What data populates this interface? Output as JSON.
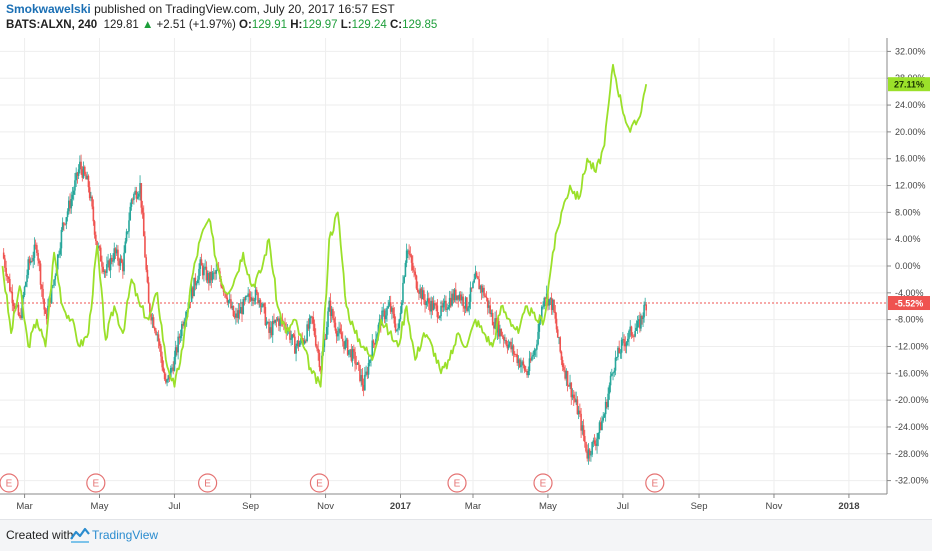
{
  "header": {
    "author": "Smokwawelski",
    "published_text": "published on TradingView.com, July 20, 2017 16:57 EST",
    "symbol": "BATS:ALXN, 240",
    "price": "129.81",
    "change_arrow": "▲",
    "change": "+2.51 (+1.97%)",
    "open_label": "O:",
    "open": "129.91",
    "high_label": "H:",
    "high": "129.97",
    "low_label": "L:",
    "low": "129.24",
    "close_label": "C:",
    "close": "129.85"
  },
  "footer": {
    "created_with": "Created with",
    "brand": "TradingView"
  },
  "colors": {
    "up_candle": "#26a69a",
    "down_candle": "#ef5350",
    "compare_line": "#9be02a",
    "price_line": "#ef5350",
    "earnings_marker": "#e57373",
    "grid": "#eeeeee"
  },
  "chart_data": {
    "type": "line",
    "y_unit": "%",
    "ylim": [
      -34,
      34
    ],
    "y_ticks": [
      32,
      28,
      24,
      20,
      16,
      12,
      8,
      4,
      0,
      -4,
      -8,
      -12,
      -16,
      -20,
      -24,
      -28,
      -32
    ],
    "y_tick_labels": [
      "32.00%",
      "28.00%",
      "24.00%",
      "20.00%",
      "16.00%",
      "12.00%",
      "8.00%",
      "4.00%",
      "0.00%",
      "-4.00%",
      "-8.00%",
      "-12.00%",
      "-16.00%",
      "-20.00%",
      "-24.00%",
      "-28.00%",
      "-32.00%"
    ],
    "x_range": [
      "2016-02-10",
      "2018-02-01"
    ],
    "x_ticks": [
      {
        "date": "2016-03-01",
        "label": "Mar"
      },
      {
        "date": "2016-05-01",
        "label": "May"
      },
      {
        "date": "2016-07-01",
        "label": "Jul"
      },
      {
        "date": "2016-09-01",
        "label": "Sep"
      },
      {
        "date": "2016-11-01",
        "label": "Nov"
      },
      {
        "date": "2017-01-01",
        "label": "2017",
        "bold": true
      },
      {
        "date": "2017-03-01",
        "label": "Mar"
      },
      {
        "date": "2017-05-01",
        "label": "May"
      },
      {
        "date": "2017-07-01",
        "label": "Jul"
      },
      {
        "date": "2017-09-01",
        "label": "Sep"
      },
      {
        "date": "2017-11-01",
        "label": "Nov"
      },
      {
        "date": "2018-01-01",
        "label": "2018",
        "bold": true
      }
    ],
    "earnings_markers": {
      "label": "E",
      "dates": [
        "2016-02-11",
        "2016-04-28",
        "2016-07-28",
        "2016-10-27",
        "2017-02-16",
        "2017-04-27",
        "2017-07-27"
      ]
    },
    "series": [
      {
        "kind": "candles",
        "x": [
          "2016-02-12",
          "2016-02-19",
          "2016-02-26",
          "2016-03-04",
          "2016-03-11",
          "2016-03-18",
          "2016-03-25",
          "2016-04-01",
          "2016-04-08",
          "2016-04-15",
          "2016-04-22",
          "2016-04-29",
          "2016-05-06",
          "2016-05-13",
          "2016-05-20",
          "2016-05-27",
          "2016-06-03",
          "2016-06-10",
          "2016-06-17",
          "2016-06-24",
          "2016-07-01",
          "2016-07-08",
          "2016-07-15",
          "2016-07-22",
          "2016-07-29",
          "2016-08-05",
          "2016-08-12",
          "2016-08-19",
          "2016-08-26",
          "2016-09-02",
          "2016-09-09",
          "2016-09-16",
          "2016-09-23",
          "2016-09-30",
          "2016-10-07",
          "2016-10-14",
          "2016-10-21",
          "2016-10-28",
          "2016-11-04",
          "2016-11-11",
          "2016-11-18",
          "2016-11-25",
          "2016-12-02",
          "2016-12-09",
          "2016-12-16",
          "2016-12-23",
          "2016-12-30",
          "2017-01-06",
          "2017-01-13",
          "2017-01-20",
          "2017-01-27",
          "2017-02-03",
          "2017-02-10",
          "2017-02-17",
          "2017-02-24",
          "2017-03-03",
          "2017-03-10",
          "2017-03-17",
          "2017-03-24",
          "2017-03-31",
          "2017-04-07",
          "2017-04-14",
          "2017-04-21",
          "2017-04-28",
          "2017-05-05",
          "2017-05-12",
          "2017-05-19",
          "2017-05-26",
          "2017-06-02",
          "2017-06-09",
          "2017-06-16",
          "2017-06-23",
          "2017-06-30",
          "2017-07-07",
          "2017-07-14",
          "2017-07-20"
        ],
        "close": [
          2,
          -4,
          -8,
          0,
          3,
          -8,
          -2,
          6,
          10,
          15,
          12,
          3,
          -1,
          2,
          0,
          10,
          12,
          -6,
          -10,
          -18,
          -14,
          -8,
          -4,
          0,
          -2,
          -1,
          -4,
          -8,
          -6,
          -4,
          -5,
          -10,
          -8,
          -9,
          -12,
          -11,
          -8,
          -15,
          -6,
          -10,
          -12,
          -14,
          -18,
          -12,
          -8,
          -6,
          -10,
          3,
          -2,
          -5,
          -6,
          -7,
          -5,
          -4,
          -6,
          -2,
          -4,
          -8,
          -10,
          -12,
          -14,
          -16,
          -12,
          -4,
          -6,
          -14,
          -18,
          -22,
          -28,
          -26,
          -22,
          -15,
          -12,
          -10,
          -9,
          -5.52
        ]
      },
      {
        "kind": "line",
        "name": "",
        "x": [
          "2016-02-12",
          "2016-02-19",
          "2016-02-26",
          "2016-03-04",
          "2016-03-11",
          "2016-03-18",
          "2016-03-25",
          "2016-04-01",
          "2016-04-08",
          "2016-04-15",
          "2016-04-22",
          "2016-04-29",
          "2016-05-06",
          "2016-05-13",
          "2016-05-20",
          "2016-05-27",
          "2016-06-03",
          "2016-06-10",
          "2016-06-17",
          "2016-06-24",
          "2016-07-01",
          "2016-07-08",
          "2016-07-15",
          "2016-07-22",
          "2016-07-29",
          "2016-08-05",
          "2016-08-12",
          "2016-08-19",
          "2016-08-26",
          "2016-09-02",
          "2016-09-09",
          "2016-09-16",
          "2016-09-23",
          "2016-09-30",
          "2016-10-07",
          "2016-10-14",
          "2016-10-21",
          "2016-10-28",
          "2016-11-04",
          "2016-11-11",
          "2016-11-18",
          "2016-11-25",
          "2016-12-02",
          "2016-12-09",
          "2016-12-16",
          "2016-12-23",
          "2016-12-30",
          "2017-01-06",
          "2017-01-13",
          "2017-01-20",
          "2017-01-27",
          "2017-02-03",
          "2017-02-10",
          "2017-02-17",
          "2017-02-24",
          "2017-03-03",
          "2017-03-10",
          "2017-03-17",
          "2017-03-24",
          "2017-03-31",
          "2017-04-07",
          "2017-04-14",
          "2017-04-21",
          "2017-04-28",
          "2017-05-05",
          "2017-05-12",
          "2017-05-19",
          "2017-05-26",
          "2017-06-02",
          "2017-06-09",
          "2017-06-16",
          "2017-06-23",
          "2017-06-30",
          "2017-07-07",
          "2017-07-14",
          "2017-07-20"
        ],
        "values": [
          0,
          -10,
          -3,
          -12,
          -8,
          -12,
          2,
          -6,
          -8,
          -12,
          -10,
          3,
          -11,
          -6,
          -10,
          -2,
          -6,
          -8,
          -4,
          -14,
          -18,
          -12,
          -2,
          4,
          7,
          0,
          -4,
          -2,
          2,
          -3,
          -1,
          4,
          -6,
          -10,
          -8,
          -12,
          -16,
          -18,
          4,
          8,
          -6,
          -10,
          -12,
          -14,
          -8,
          -10,
          -12,
          -6,
          -14,
          -10,
          -12,
          -16,
          -14,
          -10,
          -12,
          -8,
          -10,
          -12,
          -6,
          -8,
          -10,
          -6,
          -8,
          -8,
          2,
          8,
          12,
          10,
          16,
          14,
          18,
          30,
          24,
          20,
          22,
          27.11
        ]
      }
    ],
    "last_labels": [
      {
        "series": 1,
        "text": "27.11%"
      },
      {
        "series": 0,
        "text": "-5.52%"
      }
    ]
  }
}
